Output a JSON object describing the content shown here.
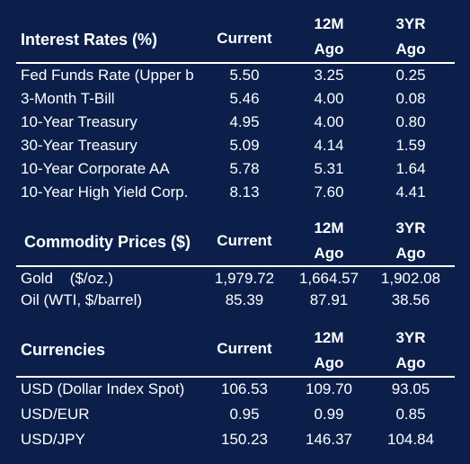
{
  "interest_rates": {
    "title": "Interest Rates (%)",
    "col_current": "Current",
    "col_12m_top": "12M",
    "col_12m_bottom": "Ago",
    "col_3yr_top": "3YR",
    "col_3yr_bottom": "Ago",
    "rows": [
      {
        "label": "Fed Funds Rate (Upper b",
        "current": "5.50",
        "m12": "3.25",
        "y3": "0.25"
      },
      {
        "label": "3-Month T-Bill",
        "current": "5.46",
        "m12": "4.00",
        "y3": "0.08"
      },
      {
        "label": "10-Year Treasury",
        "current": "4.95",
        "m12": "4.00",
        "y3": "0.80"
      },
      {
        "label": "30-Year Treasury",
        "current": "5.09",
        "m12": "4.14",
        "y3": "1.59"
      },
      {
        "label": "10-Year Corporate AA",
        "current": "5.78",
        "m12": "5.31",
        "y3": "1.64"
      },
      {
        "label": "10-Year High Yield Corp.",
        "current": "8.13",
        "m12": "7.60",
        "y3": "4.41"
      }
    ]
  },
  "commodities": {
    "title": "Commodity Prices ($)",
    "col_current": "Current",
    "col_12m_top": "12M",
    "col_12m_bottom": "Ago",
    "col_3yr_top": "3YR",
    "col_3yr_bottom": "Ago",
    "rows": [
      {
        "label": "Gold    ($/oz.)",
        "current": "1,979.72",
        "m12": "1,664.57",
        "y3": "1,902.08"
      },
      {
        "label": "Oil (WTI, $/barrel)",
        "current": "85.39",
        "m12": "87.91",
        "y3": "38.56"
      }
    ]
  },
  "currencies": {
    "title": "Currencies",
    "col_current": "Current",
    "col_12m_top": "12M",
    "col_12m_bottom": "Ago",
    "col_3yr_top": "3YR",
    "col_3yr_bottom": "Ago",
    "rows": [
      {
        "label": "USD (Dollar Index Spot)",
        "current": "106.53",
        "m12": "109.70",
        "y3": "93.05"
      },
      {
        "label": "USD/EUR",
        "current": "0.95",
        "m12": "0.99",
        "y3": "0.85"
      },
      {
        "label": "USD/JPY",
        "current": "150.23",
        "m12": "146.37",
        "y3": "104.84"
      }
    ]
  },
  "colors": {
    "background": "#0b1f4a",
    "text": "#ffffff"
  }
}
